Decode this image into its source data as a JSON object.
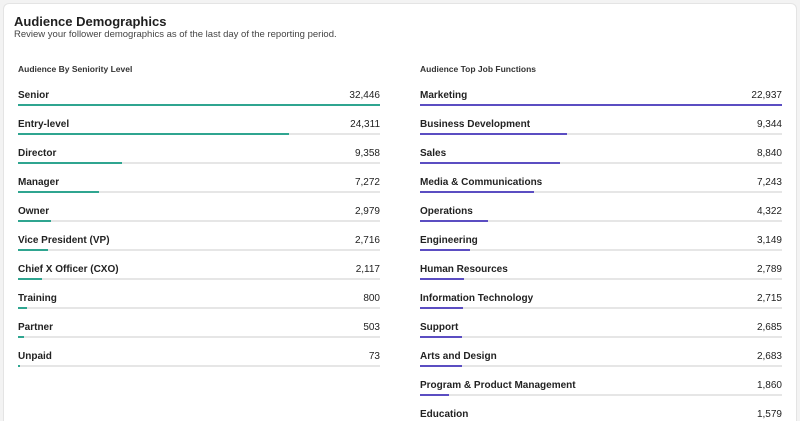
{
  "header": {
    "title": "Audience Demographics",
    "subtitle": "Review your follower demographics as of the last day of the reporting period."
  },
  "seniority": {
    "title": "Audience By Seniority Level",
    "color": "#2fa590",
    "max": 32446,
    "items": [
      {
        "label": "Senior",
        "value": "32,446",
        "num": 32446
      },
      {
        "label": "Entry-level",
        "value": "24,311",
        "num": 24311
      },
      {
        "label": "Director",
        "value": "9,358",
        "num": 9358
      },
      {
        "label": "Manager",
        "value": "7,272",
        "num": 7272
      },
      {
        "label": "Owner",
        "value": "2,979",
        "num": 2979
      },
      {
        "label": "Vice President (VP)",
        "value": "2,716",
        "num": 2716
      },
      {
        "label": "Chief X Officer (CXO)",
        "value": "2,117",
        "num": 2117
      },
      {
        "label": "Training",
        "value": "800",
        "num": 800
      },
      {
        "label": "Partner",
        "value": "503",
        "num": 503
      },
      {
        "label": "Unpaid",
        "value": "73",
        "num": 73
      }
    ]
  },
  "job_functions": {
    "title": "Audience Top Job Functions",
    "color": "#5b4dc2",
    "max": 22937,
    "items": [
      {
        "label": "Marketing",
        "value": "22,937",
        "num": 22937
      },
      {
        "label": "Business Development",
        "value": "9,344",
        "num": 9344
      },
      {
        "label": "Sales",
        "value": "8,840",
        "num": 8840
      },
      {
        "label": "Media & Communications",
        "value": "7,243",
        "num": 7243
      },
      {
        "label": "Operations",
        "value": "4,322",
        "num": 4322
      },
      {
        "label": "Engineering",
        "value": "3,149",
        "num": 3149
      },
      {
        "label": "Human Resources",
        "value": "2,789",
        "num": 2789
      },
      {
        "label": "Information Technology",
        "value": "2,715",
        "num": 2715
      },
      {
        "label": "Support",
        "value": "2,685",
        "num": 2685
      },
      {
        "label": "Arts and Design",
        "value": "2,683",
        "num": 2683
      },
      {
        "label": "Program & Product Management",
        "value": "1,860",
        "num": 1860
      },
      {
        "label": "Education",
        "value": "1,579",
        "num": 1579
      }
    ]
  }
}
